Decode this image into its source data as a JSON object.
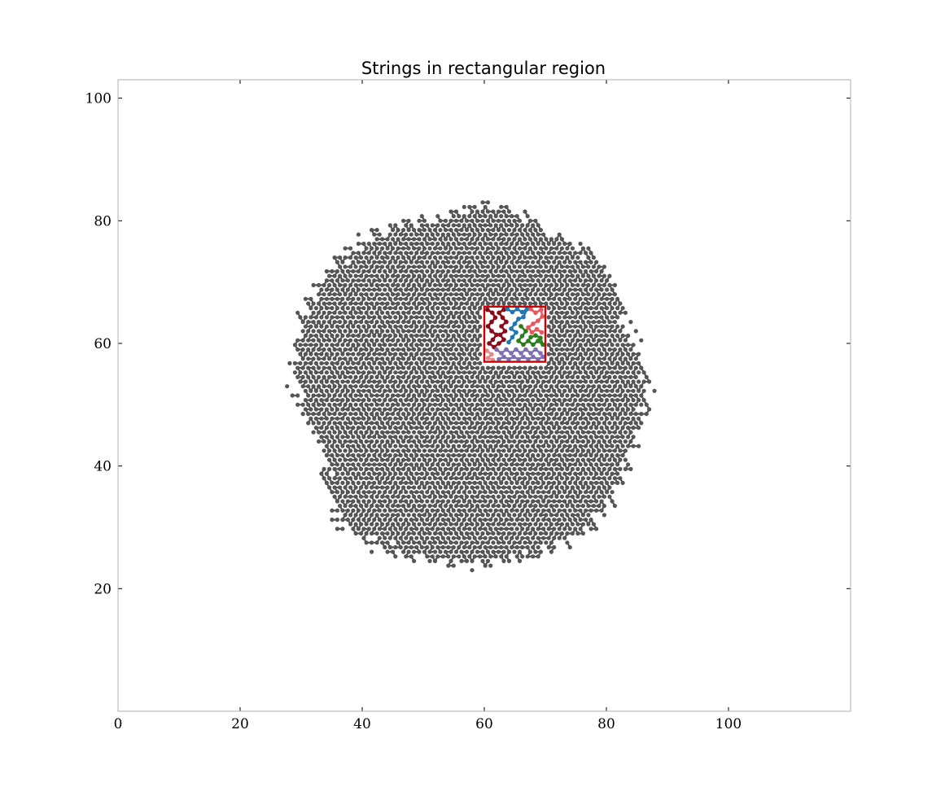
{
  "chart_data": {
    "type": "scatter",
    "title": "Strings in rectangular region",
    "xlabel": "",
    "ylabel": "",
    "xlim": [
      0,
      120
    ],
    "ylim": [
      0,
      103
    ],
    "xticks": [
      0,
      20,
      40,
      60,
      80,
      100
    ],
    "yticks": [
      20,
      40,
      60,
      80,
      100
    ],
    "grid": false,
    "legend": "none",
    "colors": {
      "axes": "#b0b0b0",
      "background_strings": "#555555",
      "region_box": "#cc0000",
      "highlight_strings": [
        "#1f77b4",
        "#e8595f",
        "#2e7d1f",
        "#8b0a1a",
        "#7e6fb5",
        "#e48a8a"
      ]
    },
    "background_strings": {
      "lattice_spacing": 0.866,
      "center": [
        58,
        53
      ],
      "boundary_radius_by_angle_deg": [
        [
          0,
          29
        ],
        [
          20,
          27
        ],
        [
          45,
          29.5
        ],
        [
          62,
          28
        ],
        [
          80,
          29.5
        ],
        [
          90,
          29.5
        ],
        [
          100,
          28
        ],
        [
          112,
          29
        ],
        [
          135,
          30
        ],
        [
          157,
          30
        ],
        [
          180,
          29
        ],
        [
          202,
          26
        ],
        [
          225,
          31
        ],
        [
          245,
          30
        ],
        [
          262,
          29
        ],
        [
          275,
          29
        ],
        [
          292,
          29.5
        ],
        [
          315,
          30
        ],
        [
          337,
          28
        ],
        [
          360,
          29
        ]
      ]
    },
    "region": {
      "x": [
        60,
        70
      ],
      "y": [
        57,
        66
      ]
    },
    "highlight_strings": [
      {
        "color": "#8b0a1a",
        "points": [
          [
            60.5,
            65.5
          ],
          [
            61.3,
            65
          ],
          [
            61.8,
            64.2
          ],
          [
            61.2,
            63.5
          ],
          [
            60.6,
            62.8
          ],
          [
            61.2,
            62
          ],
          [
            62.0,
            61.4
          ],
          [
            61.4,
            60.6
          ],
          [
            60.8,
            60
          ],
          [
            61.6,
            59.4
          ],
          [
            62.4,
            60
          ],
          [
            63.2,
            60.6
          ],
          [
            62.6,
            61.4
          ],
          [
            63.4,
            62
          ],
          [
            62.8,
            62.8
          ],
          [
            63.6,
            63.5
          ],
          [
            63.0,
            64.2
          ],
          [
            62.4,
            65
          ],
          [
            63.2,
            65.5
          ]
        ]
      },
      {
        "color": "#1f77b4",
        "points": [
          [
            63.8,
            65.6
          ],
          [
            64.6,
            65.1
          ],
          [
            65.4,
            65.6
          ],
          [
            66.2,
            65.1
          ],
          [
            67.0,
            65.6
          ],
          [
            66.4,
            64.3
          ],
          [
            65.6,
            64.0
          ],
          [
            65.0,
            63.2
          ],
          [
            64.4,
            62.4
          ],
          [
            65.2,
            61.8
          ],
          [
            64.6,
            61.0
          ],
          [
            64.0,
            60.2
          ]
        ]
      },
      {
        "color": "#e8595f",
        "points": [
          [
            67.6,
            65.6
          ],
          [
            68.4,
            65.0
          ],
          [
            69.3,
            65.5
          ],
          [
            69.5,
            64.4
          ],
          [
            68.8,
            63.7
          ],
          [
            68.0,
            63.2
          ],
          [
            67.2,
            62.6
          ],
          [
            67.8,
            61.8
          ],
          [
            68.6,
            62.3
          ],
          [
            69.4,
            61.8
          ]
        ]
      },
      {
        "color": "#2e7d1f",
        "points": [
          [
            66.0,
            62.8
          ],
          [
            66.8,
            62.0
          ],
          [
            66.2,
            61.2
          ],
          [
            65.6,
            60.4
          ],
          [
            66.4,
            59.8
          ],
          [
            67.2,
            60.4
          ],
          [
            68.0,
            59.8
          ],
          [
            68.8,
            60.4
          ],
          [
            69.6,
            59.8
          ],
          [
            69.2,
            60.9
          ],
          [
            68.4,
            61.3
          ],
          [
            67.6,
            61.0
          ]
        ]
      },
      {
        "color": "#7e6fb5",
        "points": [
          [
            62.0,
            59.0
          ],
          [
            62.8,
            58.4
          ],
          [
            63.6,
            59.0
          ],
          [
            64.4,
            58.4
          ],
          [
            65.2,
            59.0
          ],
          [
            66.0,
            58.4
          ],
          [
            66.8,
            59.0
          ],
          [
            67.6,
            58.4
          ],
          [
            68.4,
            59.0
          ],
          [
            69.2,
            58.4
          ],
          [
            69.6,
            57.8
          ],
          [
            68.8,
            57.4
          ],
          [
            68.0,
            57.8
          ],
          [
            67.2,
            57.4
          ],
          [
            66.4,
            57.8
          ],
          [
            65.6,
            57.4
          ],
          [
            64.8,
            57.8
          ],
          [
            64.0,
            57.4
          ],
          [
            63.2,
            57.8
          ],
          [
            62.4,
            57.4
          ]
        ]
      },
      {
        "color": "#e48a8a",
        "points": [
          [
            60.4,
            58.8
          ],
          [
            61.2,
            58.2
          ],
          [
            60.6,
            57.6
          ],
          [
            61.4,
            57.3
          ]
        ]
      }
    ]
  }
}
